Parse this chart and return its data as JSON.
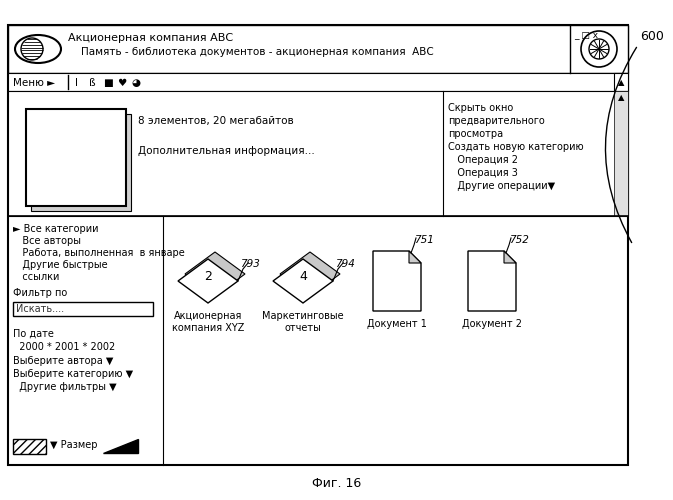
{
  "title": "Фиг. 16",
  "label_600": "600",
  "window_title_line1": "Акционерная компания АВС",
  "window_title_line2": "    Память - библиотека документов - акционерная компания  АВС",
  "menu_text": "Меню ►  |           ",
  "preview_text_line1": "8 элементов, 20 мегабайтов",
  "preview_text_line2": "Дополнительная информация...",
  "right_panel_items": [
    "Скрыть окно",
    "предварительного",
    "просмотра",
    "Создать новую категорию",
    "   Операция 2",
    "   Операция 3",
    "   Другие операции▼"
  ],
  "left_panel_items": [
    "► Все категории",
    "   Все авторы",
    "   Работа, выполненная  в январе",
    "   Другие быстрые",
    "   ссылки"
  ],
  "filter_label": "Фильтр по",
  "search_text": "Искать....",
  "date_label": "По дате",
  "date_years": "  2000 * 2001 * 2002",
  "author_dropdown": "Выберите автора ▼",
  "category_dropdown": "Выберите категорию ▼",
  "other_filters": "  Другие фильтры ▼",
  "size_label": "▼ Размер",
  "doc_items": [
    {
      "number": "793",
      "label_line1": "Акционерная",
      "label_line2": "компания XYZ",
      "center_num": "2",
      "type": "diamond"
    },
    {
      "number": "794",
      "label_line1": "Маркетинговые",
      "label_line2": "отчеты",
      "center_num": "4",
      "type": "diamond"
    },
    {
      "number": "751",
      "label_line1": "Документ 1",
      "label_line2": "",
      "center_num": "",
      "type": "page"
    },
    {
      "number": "752",
      "label_line1": "Документ 2",
      "label_line2": "",
      "center_num": "",
      "type": "page"
    }
  ]
}
